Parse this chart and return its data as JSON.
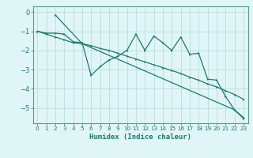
{
  "xlabel": "Humidex (Indice chaleur)",
  "bg_color": "#e0f5f5",
  "grid_color": "#c0e0e0",
  "line_color": "#1a7a6e",
  "spine_color": "#5a9a8a",
  "xlim": [
    -0.5,
    23.5
  ],
  "ylim": [
    -5.8,
    0.3
  ],
  "xticks": [
    0,
    1,
    2,
    3,
    4,
    5,
    6,
    7,
    8,
    9,
    10,
    11,
    12,
    13,
    14,
    15,
    16,
    17,
    18,
    19,
    20,
    21,
    22,
    23
  ],
  "yticks": [
    0,
    -1,
    -2,
    -3,
    -4,
    -5
  ],
  "line1_x": [
    0,
    1,
    2,
    3,
    4,
    5,
    6,
    7,
    8,
    9,
    10,
    11,
    12,
    13,
    14,
    15,
    16,
    17,
    18,
    19,
    20,
    21,
    22,
    23
  ],
  "line1_y": [
    -1.0,
    -1.15,
    -1.3,
    -1.45,
    -1.6,
    -1.65,
    -1.75,
    -1.9,
    -2.0,
    -2.15,
    -2.3,
    -2.45,
    -2.6,
    -2.75,
    -2.9,
    -3.05,
    -3.2,
    -3.4,
    -3.55,
    -3.75,
    -3.9,
    -4.1,
    -4.3,
    -4.55
  ],
  "line2_x": [
    0,
    1,
    2,
    3,
    4,
    5,
    6,
    7,
    8,
    9,
    10,
    11,
    12,
    13,
    14,
    15,
    16,
    17,
    18,
    19,
    20,
    21,
    22,
    23
  ],
  "line2_y": [
    -1.0,
    -1.1,
    -1.1,
    -1.15,
    -1.55,
    -1.6,
    -3.3,
    -2.85,
    -2.5,
    -2.3,
    -2.0,
    -1.15,
    -2.0,
    -1.25,
    -1.6,
    -2.0,
    -1.3,
    -2.2,
    -2.15,
    -3.5,
    -3.55,
    -4.4,
    -5.1,
    -5.5
  ],
  "line3_x": [
    2,
    5,
    22,
    23
  ],
  "line3_y": [
    -0.15,
    -1.65,
    -5.1,
    -5.55
  ]
}
